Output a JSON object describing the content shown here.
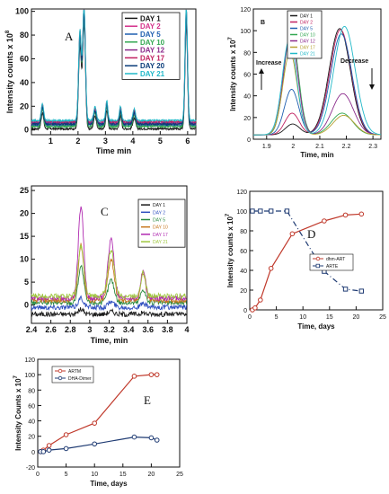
{
  "chart_data": [
    {
      "type": "line",
      "panel_label": "A",
      "xlabel": "Time min",
      "ylabel": "Intensity counts x 10",
      "ylabel_exp": "8",
      "xlim": [
        0.3,
        6.3
      ],
      "ylim": [
        -4,
        102
      ],
      "xticks": [
        1,
        2,
        3,
        4,
        5,
        6
      ],
      "yticks": [
        0,
        20,
        40,
        60,
        80,
        100
      ],
      "peaks": [
        {
          "x": 0.7,
          "w": 0.045,
          "rel": 0.15
        },
        {
          "x": 2.07,
          "w": 0.05,
          "rel": 0.78
        },
        {
          "x": 2.22,
          "w": 0.05,
          "rel": 1.0
        },
        {
          "x": 2.62,
          "w": 0.05,
          "rel": 0.12
        },
        {
          "x": 3.05,
          "w": 0.04,
          "rel": 0.17
        },
        {
          "x": 3.55,
          "w": 0.04,
          "rel": 0.12
        },
        {
          "x": 4.05,
          "w": 0.05,
          "rel": 0.1
        },
        {
          "x": 5.95,
          "w": 0.045,
          "rel": 0.99
        }
      ],
      "series": [
        {
          "name": "DAY 1",
          "color": "#1a1a1a",
          "base": 1,
          "scale": 0.9
        },
        {
          "name": "DAY 2",
          "color": "#d4308a",
          "base": 5,
          "scale": 0.93
        },
        {
          "name": "DAY 5",
          "color": "#1f5fb0",
          "base": 4,
          "scale": 0.95
        },
        {
          "name": "DAY 10",
          "color": "#34a853",
          "base": 3,
          "scale": 0.97
        },
        {
          "name": "DAY 12",
          "color": "#8b2a8b",
          "base": 6,
          "scale": 0.98
        },
        {
          "name": "DAY 17",
          "color": "#c02060",
          "base": 7,
          "scale": 1.0
        },
        {
          "name": "DAY 20",
          "color": "#0a3d7a",
          "base": 5,
          "scale": 0.96
        },
        {
          "name": "DAY 21",
          "color": "#20b8c8",
          "base": 8,
          "scale": 0.99
        }
      ]
    },
    {
      "type": "line",
      "panel_label": "B",
      "xlabel": "Time, min",
      "ylabel": "Intensity counts x 10",
      "ylabel_exp": "7",
      "xlim": [
        1.85,
        2.33
      ],
      "ylim": [
        0,
        120
      ],
      "xticks": [
        1.9,
        2,
        2.1,
        2.2,
        2.3
      ],
      "yticks": [
        0,
        20,
        40,
        60,
        80,
        100,
        120
      ],
      "annotations": [
        "Increase",
        "Decrease"
      ],
      "series": [
        {
          "name": "DAY 1",
          "color": "#1a1a1a",
          "p1": 10,
          "p2": 98
        },
        {
          "name": "DAY 2",
          "color": "#c02060",
          "p1": 20,
          "p2": 97
        },
        {
          "name": "DAY 5",
          "color": "#1f5fb0",
          "p1": 42,
          "p2": 93
        },
        {
          "name": "DAY 10",
          "color": "#34a853",
          "p1": 95,
          "p2": 20
        },
        {
          "name": "DAY 12",
          "color": "#8b2a8b",
          "p1": 92,
          "p2": 38
        },
        {
          "name": "DAY 17",
          "color": "#b8a030",
          "p1": 76,
          "p2": 18
        },
        {
          "name": "DAY 21",
          "color": "#20b8c8",
          "p1": 88,
          "p2": 100
        }
      ]
    },
    {
      "type": "line",
      "panel_label": "C",
      "xlabel": "Time, min",
      "ylabel": "",
      "xlim": [
        2.4,
        4.0
      ],
      "ylim": [
        -4,
        26
      ],
      "xticks": [
        2.4,
        2.6,
        2.8,
        3,
        3.2,
        3.4,
        3.6,
        3.8,
        4
      ],
      "yticks": [
        0,
        5,
        10,
        15,
        20,
        25
      ],
      "series": [
        {
          "name": "DAY 1",
          "color": "#1a1a1a",
          "base": -2,
          "h": [
            1,
            0.6,
            0.3
          ]
        },
        {
          "name": "DAY 2",
          "color": "#3050c0",
          "base": -0.5,
          "h": [
            2,
            1.2,
            0.8
          ]
        },
        {
          "name": "DAY 5",
          "color": "#2a8a40",
          "base": 0.5,
          "h": [
            8,
            5,
            3
          ]
        },
        {
          "name": "DAY 10",
          "color": "#c87820",
          "base": 1,
          "h": [
            12,
            9,
            6
          ]
        },
        {
          "name": "DAY 17",
          "color": "#b02ab0",
          "base": 1.5,
          "h": [
            20,
            13,
            6
          ]
        },
        {
          "name": "DAY 21",
          "color": "#a0c840",
          "base": 2,
          "h": [
            11,
            10,
            5
          ]
        }
      ]
    },
    {
      "type": "line",
      "panel_label": "D",
      "xlabel": "Time, days",
      "ylabel": "Intensity counts x 10",
      "ylabel_exp": "7",
      "xlim": [
        0,
        25
      ],
      "ylim": [
        0,
        120
      ],
      "xticks": [
        0,
        5,
        10,
        15,
        20,
        25
      ],
      "yticks": [
        0,
        20,
        40,
        60,
        80,
        100,
        120
      ],
      "series": [
        {
          "name": "dhm-ART",
          "color": "#c0392b",
          "marker": "circle",
          "dash": "",
          "x": [
            0.5,
            1,
            2,
            4,
            8,
            14,
            18,
            21
          ],
          "y": [
            0,
            2,
            10,
            42,
            77,
            90,
            96,
            97
          ]
        },
        {
          "name": "ARTE",
          "color": "#1f3b73",
          "marker": "square",
          "dash": "6,3,1,3",
          "x": [
            0.5,
            2,
            4,
            7,
            14,
            18,
            21
          ],
          "y": [
            100,
            100,
            100,
            100,
            39,
            21,
            19
          ]
        }
      ]
    },
    {
      "type": "line",
      "panel_label": "E",
      "xlabel": "Time, days",
      "ylabel": "Intensity Counts x 10",
      "ylabel_exp": "7",
      "xlim": [
        0,
        25
      ],
      "ylim": [
        -20,
        120
      ],
      "xticks": [
        0,
        5,
        10,
        15,
        20,
        25
      ],
      "yticks": [
        -20,
        0,
        20,
        40,
        60,
        80,
        100,
        120
      ],
      "series": [
        {
          "name": "ARTM",
          "color": "#c0392b",
          "marker": "circle",
          "x": [
            0.5,
            1,
            2,
            5,
            10,
            17,
            20,
            21
          ],
          "y": [
            0,
            2,
            8,
            22,
            37,
            98,
            100,
            100
          ]
        },
        {
          "name": "DHA-Dimer",
          "color": "#1f3b73",
          "marker": "circle",
          "x": [
            0.5,
            1,
            2,
            5,
            10,
            17,
            20,
            21
          ],
          "y": [
            0,
            0,
            2,
            4,
            10,
            19,
            18,
            15
          ]
        }
      ]
    }
  ]
}
